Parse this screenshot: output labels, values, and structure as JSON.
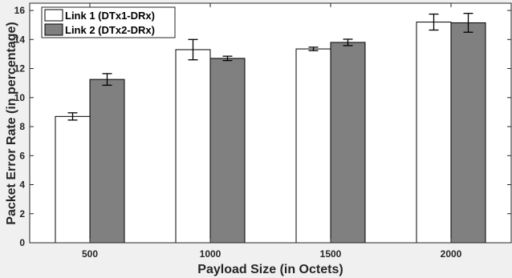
{
  "chart_data": {
    "type": "bar",
    "title": "",
    "xlabel": "Payload Size (in Octets)",
    "ylabel": "Packet Error Rate (in percentage)",
    "categories": [
      "500",
      "1000",
      "1500",
      "2000"
    ],
    "ylim": [
      0,
      16.5
    ],
    "yticks": [
      "0",
      "2",
      "4",
      "6",
      "8",
      "10",
      "12",
      "14",
      "16"
    ],
    "grid": false,
    "legend_position": "top-left",
    "series": [
      {
        "name": "Link 1 (DTx1-DRx)",
        "color": "#ffffff",
        "values": [
          8.7,
          13.3,
          13.35,
          15.2
        ],
        "error": [
          0.25,
          0.7,
          0.12,
          0.55
        ]
      },
      {
        "name": "Link 2 (DTx2-DRx)",
        "color": "#808080",
        "values": [
          11.25,
          12.7,
          13.8,
          15.15
        ],
        "error": [
          0.4,
          0.15,
          0.22,
          0.65
        ]
      }
    ]
  }
}
